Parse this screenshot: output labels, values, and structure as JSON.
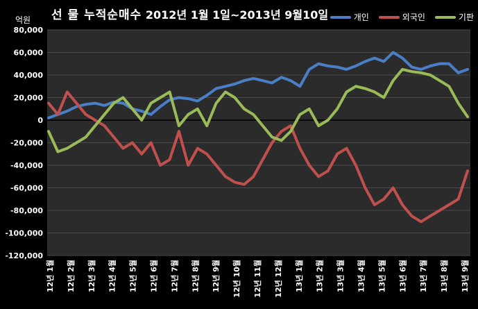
{
  "title_prefix": "선 물 누적순매수",
  "title_range": "2012년 1월 1일~2013년 9월10일",
  "unit_label": "억원",
  "colors": {
    "background": "#000000",
    "plot_bg": "#2b2b2b",
    "grid": "#4a4a4a"
  },
  "chart_data": {
    "type": "line",
    "ylim": [
      -120000,
      80000
    ],
    "yticks": [
      80000,
      60000,
      40000,
      20000,
      0,
      -20000,
      -40000,
      -60000,
      -80000,
      -100000,
      -120000
    ],
    "ytick_labels": [
      "80,000",
      "60,000",
      "40,000",
      "20,000",
      "0",
      "-20,000",
      "-40,000",
      "-60,000",
      "-80,000",
      "-100,000",
      "-120,000"
    ],
    "x_labels": [
      "12년 1월",
      "12년 2월",
      "12년 3월",
      "12년 4월",
      "12년 5월",
      "12년 6월",
      "12년 7월",
      "12년 8월",
      "12년 9월",
      "12년 10월",
      "12년 11월",
      "12년 12월",
      "13년 1월",
      "13년 2월",
      "13년 3월",
      "13년 4월",
      "13년 5월",
      "13년 6월",
      "13년 7월",
      "13년 8월",
      "13년 9월"
    ],
    "legend_position": "top-right",
    "grid": true,
    "series": [
      {
        "name": "개인",
        "color": "#4a7ec7",
        "values": [
          2000,
          5000,
          8000,
          12000,
          14000,
          15000,
          13000,
          16000,
          15000,
          10000,
          8000,
          5000,
          12000,
          18000,
          20000,
          19000,
          17000,
          22000,
          28000,
          30000,
          32000,
          35000,
          37000,
          35000,
          33000,
          38000,
          35000,
          30000,
          45000,
          50000,
          48000,
          47000,
          45000,
          48000,
          52000,
          55000,
          52000,
          60000,
          55000,
          47000,
          45000,
          48000,
          50000,
          50000,
          42000,
          45000
        ]
      },
      {
        "name": "외국인",
        "color": "#c0504d",
        "values": [
          15000,
          5000,
          25000,
          15000,
          5000,
          0,
          -5000,
          -15000,
          -25000,
          -20000,
          -30000,
          -20000,
          -40000,
          -35000,
          -10000,
          -40000,
          -25000,
          -30000,
          -40000,
          -50000,
          -55000,
          -57000,
          -50000,
          -35000,
          -20000,
          -10000,
          -5000,
          -25000,
          -40000,
          -50000,
          -45000,
          -30000,
          -25000,
          -40000,
          -60000,
          -75000,
          -70000,
          -60000,
          -75000,
          -85000,
          -90000,
          -85000,
          -80000,
          -75000,
          -70000,
          -45000
        ]
      },
      {
        "name": "기판",
        "color": "#9bbb59",
        "values": [
          -10000,
          -28000,
          -25000,
          -20000,
          -15000,
          -5000,
          5000,
          15000,
          20000,
          10000,
          0,
          15000,
          20000,
          25000,
          -5000,
          5000,
          10000,
          -5000,
          15000,
          25000,
          20000,
          10000,
          5000,
          -5000,
          -15000,
          -18000,
          -10000,
          5000,
          10000,
          -5000,
          0,
          10000,
          25000,
          30000,
          28000,
          25000,
          20000,
          35000,
          45000,
          43000,
          42000,
          40000,
          35000,
          30000,
          15000,
          3000
        ]
      }
    ]
  }
}
